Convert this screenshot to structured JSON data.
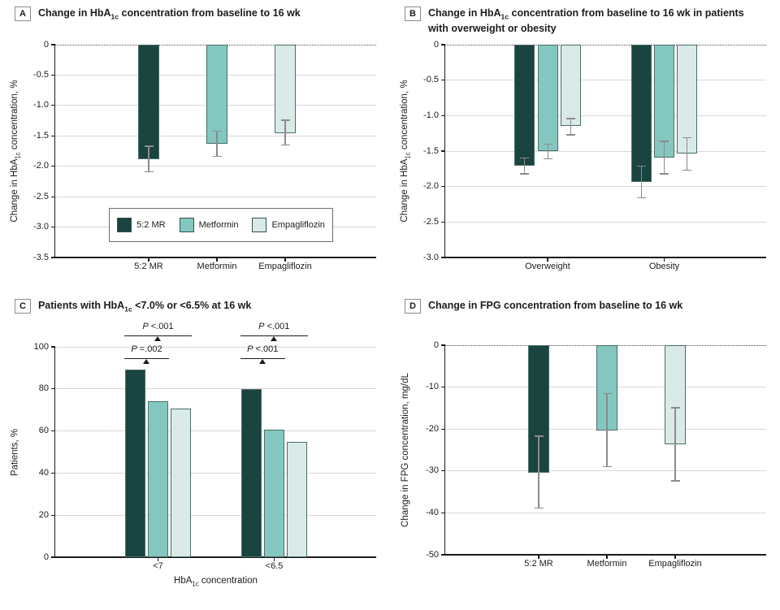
{
  "colors": {
    "dark": "#1a443f",
    "medium": "#83c7c0",
    "light": "#d9eae8",
    "bar_border": "#4a6e68",
    "error_bar": "#8b8b8b",
    "gridline": "#d8d8d8",
    "axis": "#1c1c1c",
    "zero_line": "#4a4a4a",
    "text": "#1c1c1c"
  },
  "chart_data": [
    {
      "letter": "A",
      "type": "bar",
      "title": {
        "pre": "Change in HbA",
        "sub": "1c",
        "post": " concentration from baseline to 16 wk",
        "line2": ""
      },
      "ylabel": {
        "pre": "Change in HbA",
        "sub": "1c",
        "post": " concentration, %"
      },
      "ylim": [
        -3.5,
        0
      ],
      "yticks": [
        {
          "v": 0,
          "label": "0"
        },
        {
          "v": -0.5,
          "label": "-0.5"
        },
        {
          "v": -1.0,
          "label": "-1.0"
        },
        {
          "v": -1.5,
          "label": "-1.5"
        },
        {
          "v": -2.0,
          "label": "-2.0"
        },
        {
          "v": -2.5,
          "label": "-2.5"
        },
        {
          "v": -3.0,
          "label": "-3.0"
        },
        {
          "v": -3.5,
          "label": "-3.5"
        }
      ],
      "categories": [
        "5:2 MR",
        "Metformin",
        "Empagliflozin"
      ],
      "bars": [
        {
          "category": "5:2 MR",
          "series": "5:2 MR",
          "color": "dark",
          "value": -1.88,
          "ci": [
            -1.67,
            -2.09
          ]
        },
        {
          "category": "Metformin",
          "series": "Metformin",
          "color": "medium",
          "value": -1.63,
          "ci": [
            -1.42,
            -1.84
          ]
        },
        {
          "category": "Empagliflozin",
          "series": "Empagliflozin",
          "color": "light",
          "value": -1.45,
          "ci": [
            -1.24,
            -1.65
          ]
        }
      ],
      "legend": [
        {
          "label": "5:2 MR",
          "color": "dark"
        },
        {
          "label": "Metformin",
          "color": "medium"
        },
        {
          "label": "Empagliflozin",
          "color": "light"
        }
      ],
      "legend_position": "inside-bottom"
    },
    {
      "letter": "B",
      "type": "bar",
      "title": {
        "pre": "Change in HbA",
        "sub": "1c",
        "post": " concentration from baseline to 16 wk in patients",
        "line2": "with overweight or obesity"
      },
      "ylabel": {
        "pre": "Change in HbA",
        "sub": "1c",
        "post": " concentration, %"
      },
      "ylim": [
        -3.0,
        0
      ],
      "yticks": [
        {
          "v": 0,
          "label": "0"
        },
        {
          "v": -0.5,
          "label": "-0.5"
        },
        {
          "v": -1.0,
          "label": "-1.0"
        },
        {
          "v": -1.5,
          "label": "-1.5"
        },
        {
          "v": -2.0,
          "label": "-2.0"
        },
        {
          "v": -2.5,
          "label": "-2.5"
        },
        {
          "v": -3.0,
          "label": "-3.0"
        }
      ],
      "categories": [
        "Overweight",
        "Obesity"
      ],
      "bars": [
        {
          "category": "Overweight",
          "series": "5:2 MR",
          "color": "dark",
          "value": -1.71,
          "ci": [
            -1.6,
            -1.82
          ]
        },
        {
          "category": "Overweight",
          "series": "Metformin",
          "color": "medium",
          "value": -1.5,
          "ci": [
            -1.4,
            -1.61
          ]
        },
        {
          "category": "Overweight",
          "series": "Empagliflozin",
          "color": "light",
          "value": -1.15,
          "ci": [
            -1.04,
            -1.27
          ]
        },
        {
          "category": "Obesity",
          "series": "5:2 MR",
          "color": "dark",
          "value": -1.94,
          "ci": [
            -1.71,
            -2.16
          ]
        },
        {
          "category": "Obesity",
          "series": "Metformin",
          "color": "medium",
          "value": -1.59,
          "ci": [
            -1.36,
            -1.82
          ]
        },
        {
          "category": "Obesity",
          "series": "Empagliflozin",
          "color": "light",
          "value": -1.54,
          "ci": [
            -1.31,
            -1.77
          ]
        }
      ]
    },
    {
      "letter": "C",
      "type": "bar",
      "title": {
        "pre": "Patients with HbA",
        "sub": "1c",
        "post": " <7.0% or <6.5% at 16 wk",
        "line2": ""
      },
      "ylabel": {
        "pre": "Patients, %",
        "sub": "",
        "post": ""
      },
      "xlabel": {
        "pre": "HbA",
        "sub": "1c",
        "post": " concentration"
      },
      "ylim": [
        0,
        100
      ],
      "yticks": [
        {
          "v": 0,
          "label": "0"
        },
        {
          "v": 20,
          "label": "20"
        },
        {
          "v": 40,
          "label": "40"
        },
        {
          "v": 60,
          "label": "60"
        },
        {
          "v": 80,
          "label": "80"
        },
        {
          "v": 100,
          "label": "100"
        }
      ],
      "categories": [
        "<7",
        "<6.5"
      ],
      "bars": [
        {
          "category": "<7",
          "series": "5:2 MR",
          "color": "dark",
          "value": 89
        },
        {
          "category": "<7",
          "series": "Metformin",
          "color": "medium",
          "value": 74
        },
        {
          "category": "<7",
          "series": "Empagliflozin",
          "color": "light",
          "value": 70.5
        },
        {
          "category": "<6.5",
          "series": "5:2 MR",
          "color": "dark",
          "value": 80
        },
        {
          "category": "<6.5",
          "series": "Metformin",
          "color": "medium",
          "value": 60.5
        },
        {
          "category": "<6.5",
          "series": "Empagliflozin",
          "color": "light",
          "value": 55
        }
      ],
      "p_annotations": [
        {
          "group": 0,
          "level": "upper",
          "p": "P",
          "value": " <.001",
          "between": [
            "5:2 MR",
            "Empagliflozin"
          ]
        },
        {
          "group": 0,
          "level": "lower",
          "p": "P",
          "value": " =.002",
          "between": [
            "5:2 MR",
            "Metformin"
          ]
        },
        {
          "group": 1,
          "level": "upper",
          "p": "P",
          "value": " <.001",
          "between": [
            "5:2 MR",
            "Empagliflozin"
          ]
        },
        {
          "group": 1,
          "level": "lower",
          "p": "P",
          "value": " <.001",
          "between": [
            "5:2 MR",
            "Metformin"
          ]
        }
      ]
    },
    {
      "letter": "D",
      "type": "bar",
      "title": {
        "pre": "Change in FPG concentration from baseline to 16 wk",
        "sub": "",
        "post": "",
        "line2": ""
      },
      "ylabel": {
        "pre": "Change in FPG concentration, mg/dL",
        "sub": "",
        "post": ""
      },
      "ylim": [
        -50,
        0
      ],
      "yticks": [
        {
          "v": 0,
          "label": "0"
        },
        {
          "v": -10,
          "label": "-10"
        },
        {
          "v": -20,
          "label": "-20"
        },
        {
          "v": -30,
          "label": "-30"
        },
        {
          "v": -40,
          "label": "-40"
        },
        {
          "v": -50,
          "label": "-50"
        }
      ],
      "categories": [
        "5:2 MR",
        "Metformin",
        "Empagliflozin"
      ],
      "bars": [
        {
          "category": "5:2 MR",
          "series": "5:2 MR",
          "color": "dark",
          "value": -30.4,
          "ci": [
            -21.7,
            -38.9
          ]
        },
        {
          "category": "Metformin",
          "series": "Metformin",
          "color": "medium",
          "value": -20.3,
          "ci": [
            -11.5,
            -29.0
          ]
        },
        {
          "category": "Empagliflozin",
          "series": "Empagliflozin",
          "color": "light",
          "value": -23.6,
          "ci": [
            -14.9,
            -32.4
          ]
        }
      ]
    }
  ]
}
